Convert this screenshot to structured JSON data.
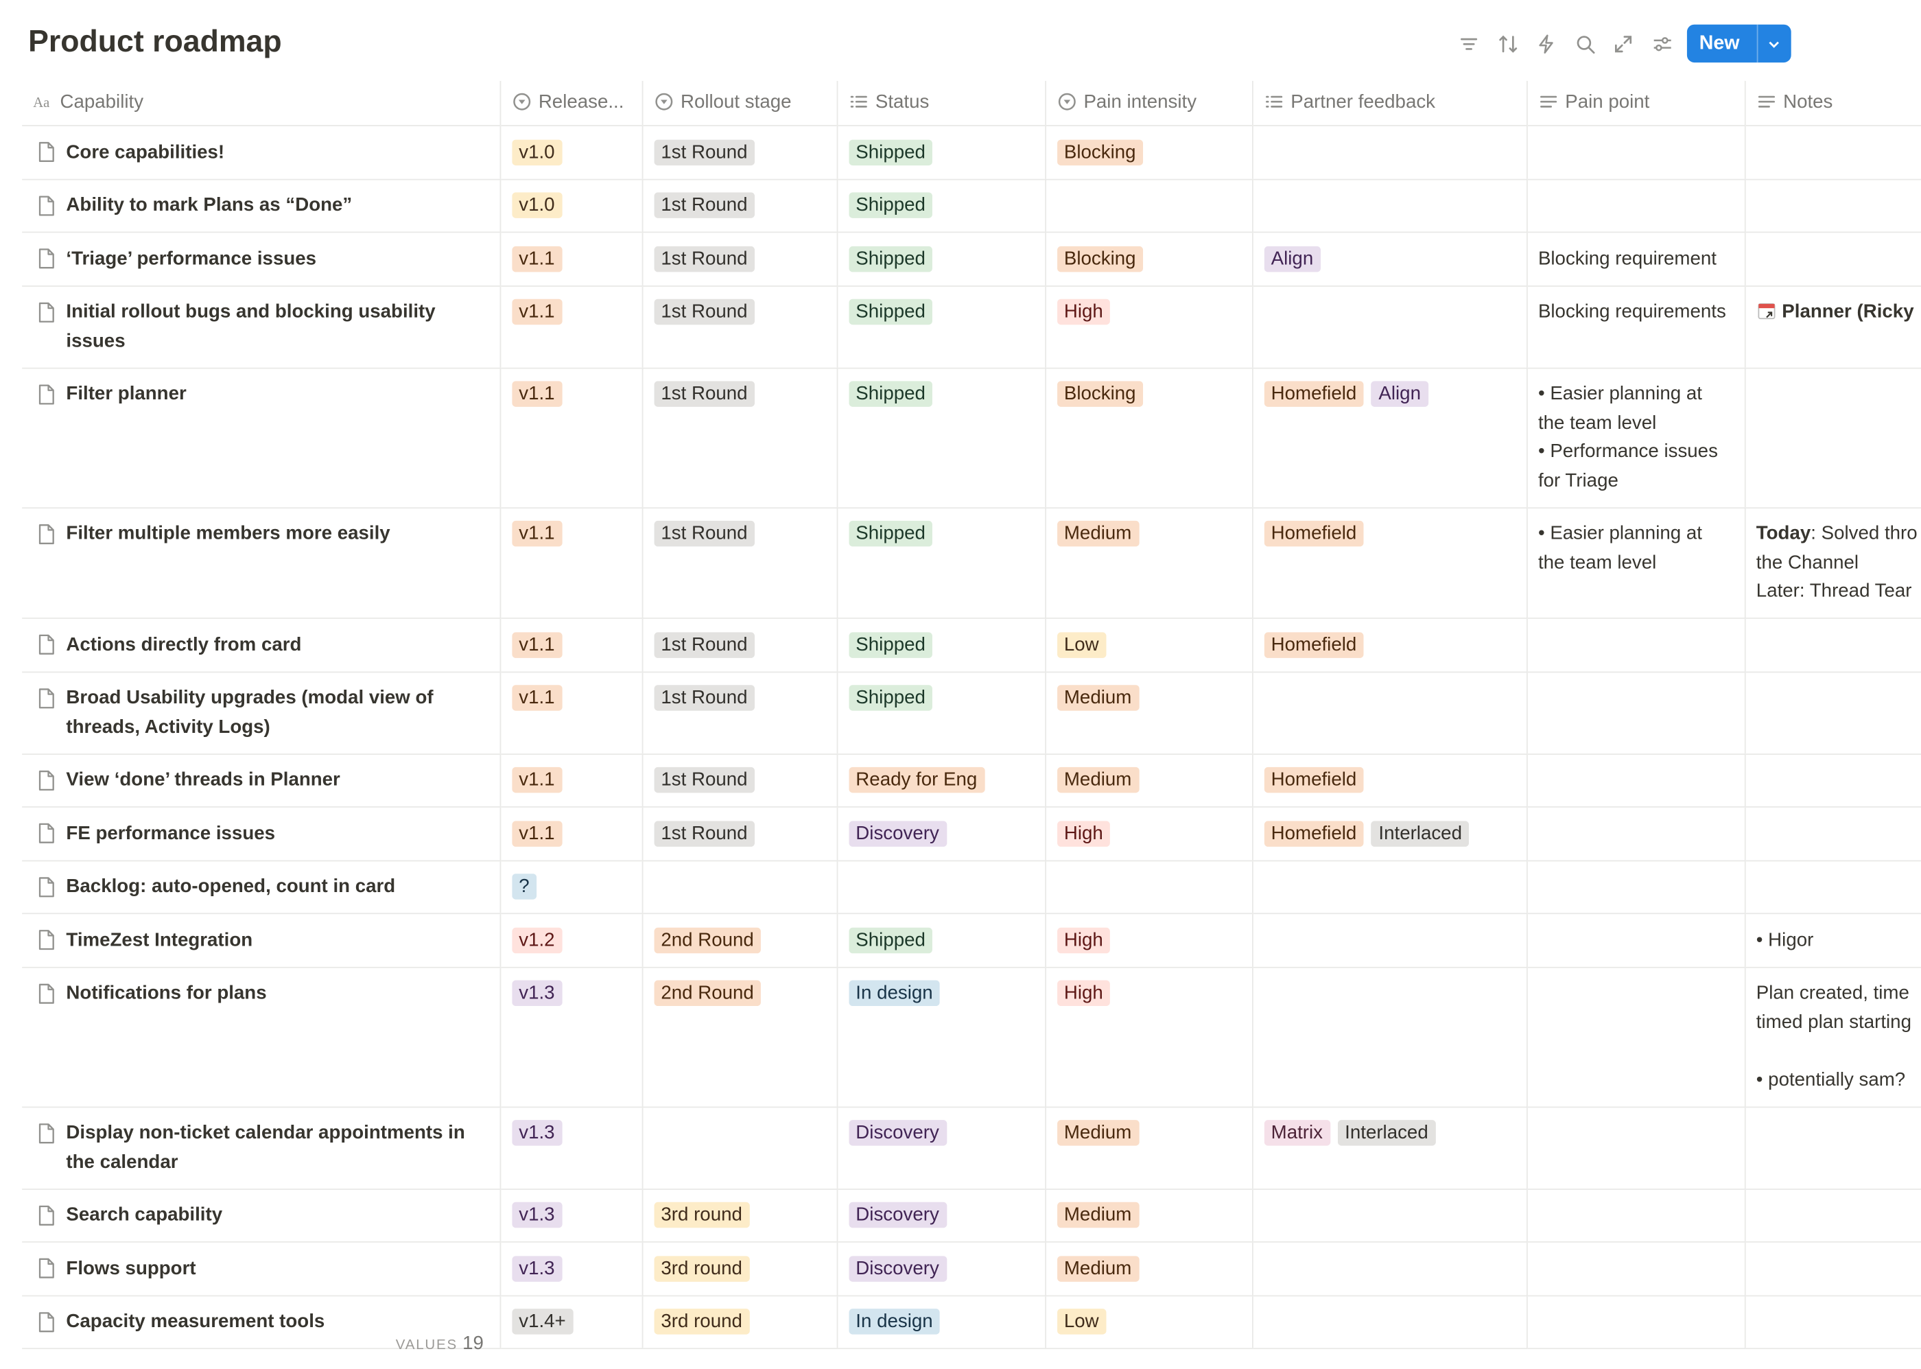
{
  "header": {
    "title": "Product roadmap",
    "new_button": "New"
  },
  "columns": [
    {
      "label": "Capability"
    },
    {
      "label": "Release..."
    },
    {
      "label": "Rollout stage"
    },
    {
      "label": "Status"
    },
    {
      "label": "Pain intensity"
    },
    {
      "label": "Partner feedback"
    },
    {
      "label": "Pain point"
    },
    {
      "label": "Notes"
    }
  ],
  "rows": [
    {
      "capability": "Core capabilities!",
      "release": {
        "text": "v1.0",
        "color": "yellow"
      },
      "rollout": {
        "text": "1st Round",
        "color": "gray"
      },
      "status": {
        "text": "Shipped",
        "color": "green"
      },
      "pain": {
        "text": "Blocking",
        "color": "orange"
      },
      "partners": [],
      "pain_point": [],
      "notes": []
    },
    {
      "capability": "Ability to mark Plans as “Done”",
      "release": {
        "text": "v1.0",
        "color": "yellow"
      },
      "rollout": {
        "text": "1st Round",
        "color": "gray"
      },
      "status": {
        "text": "Shipped",
        "color": "green"
      },
      "pain": null,
      "partners": [],
      "pain_point": [],
      "notes": []
    },
    {
      "capability": "‘Triage’ performance issues",
      "release": {
        "text": "v1.1",
        "color": "orange"
      },
      "rollout": {
        "text": "1st Round",
        "color": "gray"
      },
      "status": {
        "text": "Shipped",
        "color": "green"
      },
      "pain": {
        "text": "Blocking",
        "color": "orange"
      },
      "partners": [
        {
          "text": "Align",
          "color": "purple"
        }
      ],
      "pain_point": [
        "Blocking requirement"
      ],
      "notes": []
    },
    {
      "capability": "Initial rollout bugs and blocking usability issues",
      "release": {
        "text": "v1.1",
        "color": "orange"
      },
      "rollout": {
        "text": "1st Round",
        "color": "gray"
      },
      "status": {
        "text": "Shipped",
        "color": "green"
      },
      "pain": {
        "text": "High",
        "color": "red"
      },
      "partners": [],
      "pain_point": [
        "Blocking requirements"
      ],
      "notes": [
        [
          {
            "link": "Planner (Ricky"
          }
        ]
      ]
    },
    {
      "capability": "Filter planner",
      "release": {
        "text": "v1.1",
        "color": "orange"
      },
      "rollout": {
        "text": "1st Round",
        "color": "gray"
      },
      "status": {
        "text": "Shipped",
        "color": "green"
      },
      "pain": {
        "text": "Blocking",
        "color": "orange"
      },
      "partners": [
        {
          "text": "Homefield",
          "color": "orange"
        },
        {
          "text": "Align",
          "color": "purple"
        }
      ],
      "pain_point": [
        "• Easier planning at the team level",
        "• Performance issues for Triage"
      ],
      "notes": []
    },
    {
      "capability": "Filter multiple members more easily",
      "release": {
        "text": "v1.1",
        "color": "orange"
      },
      "rollout": {
        "text": "1st Round",
        "color": "gray"
      },
      "status": {
        "text": "Shipped",
        "color": "green"
      },
      "pain": {
        "text": "Medium",
        "color": "orange"
      },
      "partners": [
        {
          "text": "Homefield",
          "color": "orange"
        }
      ],
      "pain_point": [
        "• Easier planning at the team level"
      ],
      "notes": [
        [
          {
            "bold": "Today",
            "text": ": Solved thro"
          },
          "the Channel",
          "Later: Thread Tear"
        ]
      ]
    },
    {
      "capability": "Actions directly from card",
      "release": {
        "text": "v1.1",
        "color": "orange"
      },
      "rollout": {
        "text": "1st Round",
        "color": "gray"
      },
      "status": {
        "text": "Shipped",
        "color": "green"
      },
      "pain": {
        "text": "Low",
        "color": "yellow"
      },
      "partners": [
        {
          "text": "Homefield",
          "color": "orange"
        }
      ],
      "pain_point": [],
      "notes": []
    },
    {
      "capability": "Broad Usability upgrades (modal view of threads, Activity Logs)",
      "release": {
        "text": "v1.1",
        "color": "orange"
      },
      "rollout": {
        "text": "1st Round",
        "color": "gray"
      },
      "status": {
        "text": "Shipped",
        "color": "green"
      },
      "pain": {
        "text": "Medium",
        "color": "orange"
      },
      "partners": [],
      "pain_point": [],
      "notes": []
    },
    {
      "capability": "View ‘done’ threads in Planner",
      "release": {
        "text": "v1.1",
        "color": "orange"
      },
      "rollout": {
        "text": "1st Round",
        "color": "gray"
      },
      "status": {
        "text": "Ready for Eng",
        "color": "orange"
      },
      "pain": {
        "text": "Medium",
        "color": "orange"
      },
      "partners": [
        {
          "text": "Homefield",
          "color": "orange"
        }
      ],
      "pain_point": [],
      "notes": []
    },
    {
      "capability": "FE performance issues",
      "release": {
        "text": "v1.1",
        "color": "orange"
      },
      "rollout": {
        "text": "1st Round",
        "color": "gray"
      },
      "status": {
        "text": "Discovery",
        "color": "purple"
      },
      "pain": {
        "text": "High",
        "color": "red"
      },
      "partners": [
        {
          "text": "Homefield",
          "color": "orange"
        },
        {
          "text": "Interlaced",
          "color": "gray"
        }
      ],
      "pain_point": [],
      "notes": []
    },
    {
      "capability": "Backlog: auto-opened, count in card",
      "release": {
        "text": "?",
        "color": "blue"
      },
      "rollout": null,
      "status": null,
      "pain": null,
      "partners": [],
      "pain_point": [],
      "notes": []
    },
    {
      "capability": "TimeZest Integration",
      "release": {
        "text": "v1.2",
        "color": "red"
      },
      "rollout": {
        "text": "2nd Round",
        "color": "orange"
      },
      "status": {
        "text": "Shipped",
        "color": "green"
      },
      "pain": {
        "text": "High",
        "color": "red"
      },
      "partners": [],
      "pain_point": [],
      "notes": [
        [
          "• Higor"
        ]
      ]
    },
    {
      "capability": "Notifications for plans",
      "release": {
        "text": "v1.3",
        "color": "purple"
      },
      "rollout": {
        "text": "2nd Round",
        "color": "orange"
      },
      "status": {
        "text": "In design",
        "color": "blue"
      },
      "pain": {
        "text": "High",
        "color": "red"
      },
      "partners": [],
      "pain_point": [],
      "notes": [
        [
          "Plan created, time",
          "timed plan starting"
        ],
        [
          "• potentially sam?"
        ]
      ]
    },
    {
      "capability": "Display non-ticket calendar appointments in the calendar",
      "release": {
        "text": "v1.3",
        "color": "purple"
      },
      "rollout": null,
      "status": {
        "text": "Discovery",
        "color": "purple"
      },
      "pain": {
        "text": "Medium",
        "color": "orange"
      },
      "partners": [
        {
          "text": "Matrix",
          "color": "pink"
        },
        {
          "text": "Interlaced",
          "color": "gray"
        }
      ],
      "pain_point": [],
      "notes": []
    },
    {
      "capability": "Search capability",
      "release": {
        "text": "v1.3",
        "color": "purple"
      },
      "rollout": {
        "text": "3rd round",
        "color": "yellow"
      },
      "status": {
        "text": "Discovery",
        "color": "purple"
      },
      "pain": {
        "text": "Medium",
        "color": "orange"
      },
      "partners": [],
      "pain_point": [],
      "notes": []
    },
    {
      "capability": "Flows support",
      "release": {
        "text": "v1.3",
        "color": "purple"
      },
      "rollout": {
        "text": "3rd round",
        "color": "yellow"
      },
      "status": {
        "text": "Discovery",
        "color": "purple"
      },
      "pain": {
        "text": "Medium",
        "color": "orange"
      },
      "partners": [],
      "pain_point": [],
      "notes": []
    },
    {
      "capability": "Capacity measurement tools",
      "release": {
        "text": "v1.4+",
        "color": "gray"
      },
      "rollout": {
        "text": "3rd round",
        "color": "yellow"
      },
      "status": {
        "text": "In design",
        "color": "blue"
      },
      "pain": {
        "text": "Low",
        "color": "yellow"
      },
      "partners": [],
      "pain_point": [],
      "notes": []
    }
  ],
  "footer": {
    "label": "VALUES",
    "count": 19
  }
}
